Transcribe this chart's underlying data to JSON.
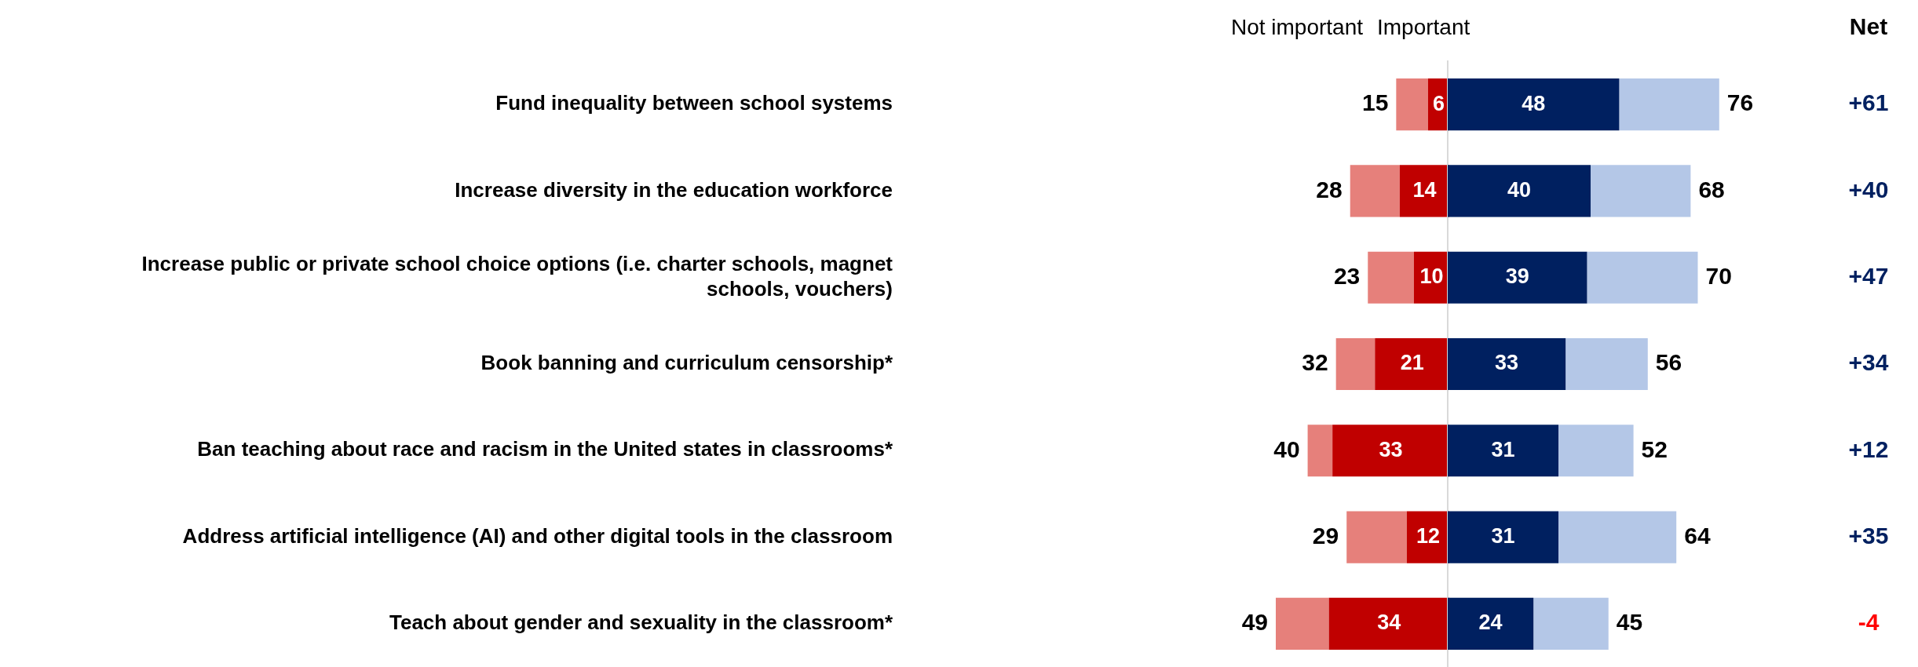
{
  "chart_data": [
    {
      "type": "bar",
      "orientation": "horizontal",
      "stacked": true,
      "categories": [
        "Fund inequality between school systems",
        "Increase diversity in the education workforce",
        "Increase public or private school choice options (i.e. charter schools, magnet schools, vouchers)",
        "Book banning and curriculum censorship*",
        "Ban teaching about race and racism in the United states in classrooms*",
        "Address artificial intelligence (AI) and other digital tools in the classroom",
        "Teach about gender and sexuality in the classroom*"
      ],
      "series": [
        {
          "color": "#c00000",
          "values": [
            6,
            14,
            10,
            21,
            33,
            12,
            34
          ],
          "value_labels": [
            "6",
            "14",
            "10",
            "21",
            "33",
            "12",
            "34"
          ]
        },
        {
          "color": "#e6807b",
          "values": [
            9,
            14,
            13,
            11,
            7,
            17,
            15
          ]
        }
      ],
      "totals": [
        "15",
        "28",
        "23",
        "32",
        "40",
        "29",
        "49"
      ],
      "xlim": [
        49,
        0
      ],
      "tick_labels": "y",
      "legend": false,
      "annotations": [
        "Not important"
      ]
    },
    {
      "type": "bar",
      "orientation": "horizontal",
      "stacked": true,
      "categories": [
        null,
        null,
        null,
        null,
        null,
        null,
        null
      ],
      "series": [
        {
          "color": "#002060",
          "values": [
            48,
            40,
            39,
            33,
            31,
            31,
            24
          ],
          "value_labels": [
            "48",
            "40",
            "39",
            "33",
            "31",
            "31",
            "24"
          ]
        },
        {
          "color": "#b4c7e7",
          "values": [
            28,
            28,
            31,
            23,
            21,
            33,
            21
          ]
        }
      ],
      "totals": [
        "76",
        "68",
        "70",
        "56",
        "52",
        "64",
        "45"
      ],
      "tick_labels": false,
      "legend": false,
      "annotations": [
        "Important",
        "Net",
        "+61",
        "+40",
        "+47",
        "+34",
        "+12",
        "+35",
        "-4"
      ]
    }
  ]
}
